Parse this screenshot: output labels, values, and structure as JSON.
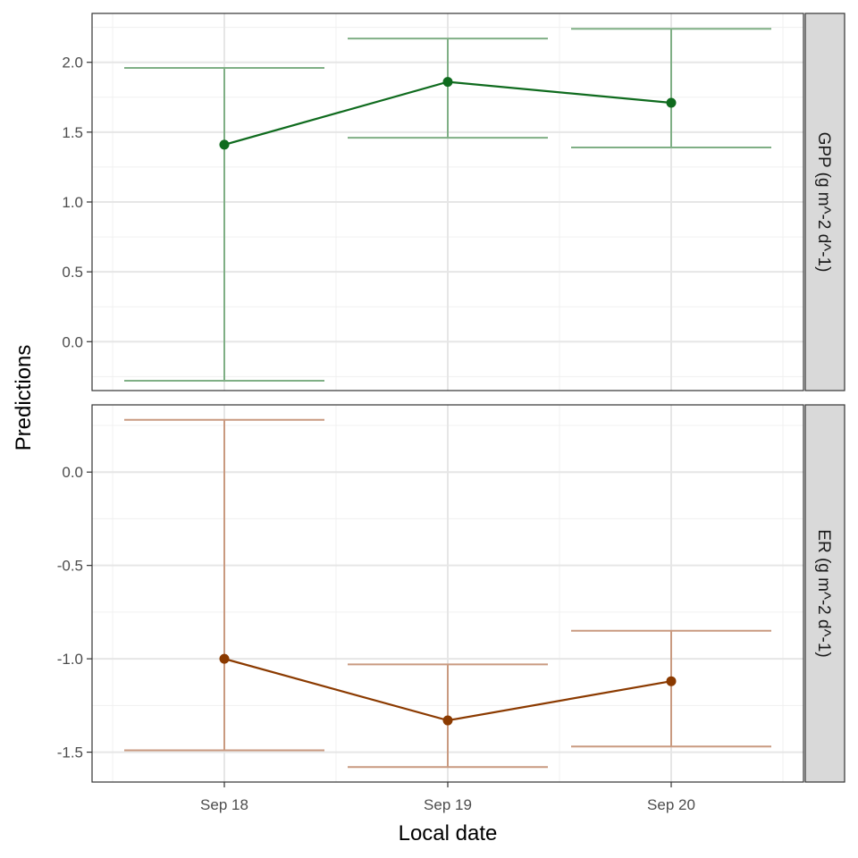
{
  "chart_data": {
    "type": "line",
    "xlabel": "Local date",
    "ylabel": "Predictions",
    "x_categories": [
      "Sep 18",
      "Sep 19",
      "Sep 20"
    ],
    "grid": true,
    "panels": [
      {
        "strip_label": "GPP (g m^-2 d^-1)",
        "color": "#0f6b1e",
        "errorbar_color": "#7faf85",
        "ylim": [
          -0.35,
          2.35
        ],
        "yticks": [
          0.0,
          0.5,
          1.0,
          1.5,
          2.0
        ],
        "ytick_labels": [
          "0.0",
          "0.5",
          "1.0",
          "1.5",
          "2.0"
        ],
        "points": [
          {
            "x": "Sep 18",
            "y": 1.41,
            "lower": -0.28,
            "upper": 1.96
          },
          {
            "x": "Sep 19",
            "y": 1.86,
            "lower": 1.46,
            "upper": 2.17
          },
          {
            "x": "Sep 20",
            "y": 1.71,
            "lower": 1.39,
            "upper": 2.24
          }
        ]
      },
      {
        "strip_label": "ER (g m^-2 d^-1)",
        "color": "#8b3a00",
        "errorbar_color": "#c99a80",
        "ylim": [
          -1.66,
          0.36
        ],
        "yticks": [
          -1.5,
          -1.0,
          -0.5,
          0.0
        ],
        "ytick_labels": [
          "-1.5",
          "-1.0",
          "-0.5",
          "0.0"
        ],
        "points": [
          {
            "x": "Sep 18",
            "y": -1.0,
            "lower": -1.49,
            "upper": 0.28
          },
          {
            "x": "Sep 19",
            "y": -1.33,
            "lower": -1.58,
            "upper": -1.03
          },
          {
            "x": "Sep 20",
            "y": -1.12,
            "lower": -1.47,
            "upper": -0.85
          }
        ]
      }
    ]
  }
}
